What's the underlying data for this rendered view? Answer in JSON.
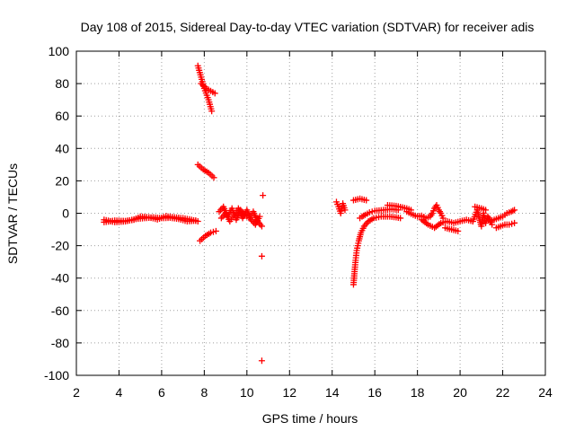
{
  "chart_data": {
    "type": "scatter",
    "title": "Day 108 of 2015, Sidereal Day-to-day VTEC variation (SDTVAR) for receiver adis",
    "xlabel": "GPS time / hours",
    "ylabel": "SDTVAR / TECUs",
    "xlim": [
      2,
      24
    ],
    "ylim": [
      -100,
      100
    ],
    "x_ticks": [
      2,
      4,
      6,
      8,
      10,
      12,
      14,
      16,
      18,
      20,
      22,
      24
    ],
    "y_ticks": [
      -100,
      -80,
      -60,
      -40,
      -20,
      0,
      20,
      40,
      60,
      80,
      100
    ],
    "grid": true,
    "marker": "+",
    "color": "#ff0000",
    "series": [
      {
        "name": "SDTVAR",
        "segments": [
          [
            [
              3.3,
              -5.5
            ],
            [
              3.8,
              -4.5
            ],
            [
              4.3,
              -4.8
            ],
            [
              4.7,
              -4
            ],
            [
              5.0,
              -2
            ],
            [
              5.4,
              -2.5
            ],
            [
              5.8,
              -3.8
            ],
            [
              6.2,
              -1.8
            ],
            [
              6.6,
              -2.5
            ],
            [
              7.0,
              -3
            ],
            [
              7.4,
              -4
            ],
            [
              7.7,
              -5
            ]
          ],
          [
            [
              3.3,
              -4
            ],
            [
              3.8,
              -5.5
            ],
            [
              4.3,
              -5
            ],
            [
              4.8,
              -3.5
            ],
            [
              5.2,
              -3
            ],
            [
              5.6,
              -2.5
            ],
            [
              6.0,
              -3
            ],
            [
              6.4,
              -2.8
            ],
            [
              6.8,
              -3.5
            ],
            [
              7.2,
              -5
            ],
            [
              7.6,
              -4.5
            ]
          ],
          [
            [
              7.7,
              91
            ],
            [
              7.85,
              84
            ],
            [
              8.0,
              77
            ],
            [
              8.2,
              70
            ],
            [
              8.35,
              63
            ]
          ],
          [
            [
              7.85,
              80
            ],
            [
              8.1,
              77
            ],
            [
              8.5,
              74
            ]
          ],
          [
            [
              7.7,
              30
            ],
            [
              7.95,
              27
            ],
            [
              8.2,
              25
            ],
            [
              8.45,
              22
            ]
          ],
          [
            [
              7.8,
              -17
            ],
            [
              8.05,
              -14
            ],
            [
              8.3,
              -12
            ],
            [
              8.55,
              -11
            ]
          ],
          [
            [
              8.7,
              1
            ],
            [
              8.9,
              4
            ],
            [
              9.1,
              -2
            ],
            [
              9.3,
              3
            ],
            [
              9.5,
              -4
            ],
            [
              9.7,
              2
            ],
            [
              9.9,
              -1
            ],
            [
              10.1,
              -3
            ],
            [
              10.3,
              1
            ],
            [
              10.5,
              -5
            ],
            [
              10.7,
              -8
            ]
          ],
          [
            [
              8.8,
              -3
            ],
            [
              9.0,
              0
            ],
            [
              9.2,
              -5
            ],
            [
              9.4,
              -1
            ],
            [
              9.6,
              3
            ],
            [
              9.8,
              -3
            ],
            [
              10.0,
              2
            ],
            [
              10.2,
              -4
            ],
            [
              10.4,
              -7
            ],
            [
              10.6,
              -2
            ]
          ],
          [
            [
              10.75,
              11
            ]
          ],
          [
            [
              10.7,
              -26.5
            ]
          ],
          [
            [
              10.7,
              -91
            ]
          ],
          [
            [
              14.2,
              7
            ],
            [
              14.3,
              4
            ],
            [
              14.4,
              0
            ],
            [
              14.5,
              6
            ],
            [
              14.6,
              2
            ]
          ],
          [
            [
              15.0,
              8
            ],
            [
              15.3,
              9
            ],
            [
              15.6,
              8
            ]
          ],
          [
            [
              15.0,
              -44
            ],
            [
              15.05,
              -36
            ],
            [
              15.1,
              -29
            ],
            [
              15.15,
              -23
            ],
            [
              15.25,
              -17
            ],
            [
              15.35,
              -12
            ],
            [
              15.5,
              -8
            ],
            [
              15.7,
              -5
            ],
            [
              15.95,
              -3
            ],
            [
              16.3,
              -2
            ],
            [
              16.7,
              -2
            ],
            [
              17.0,
              -2.5
            ],
            [
              17.2,
              -3
            ]
          ],
          [
            [
              15.3,
              -3
            ],
            [
              15.4,
              -2
            ],
            [
              15.55,
              -1
            ],
            [
              15.75,
              0.5
            ],
            [
              16.0,
              1.5
            ],
            [
              16.4,
              2
            ],
            [
              16.8,
              2.5
            ],
            [
              17.1,
              2
            ]
          ],
          [
            [
              16.6,
              5
            ],
            [
              17.0,
              4.5
            ],
            [
              17.5,
              3
            ],
            [
              17.7,
              2
            ]
          ],
          [
            [
              17.5,
              1
            ],
            [
              17.8,
              -1
            ],
            [
              18.0,
              -2
            ],
            [
              18.2,
              -1.5
            ],
            [
              18.4,
              -3
            ],
            [
              18.6,
              -2
            ],
            [
              18.7,
              0
            ],
            [
              18.8,
              3
            ],
            [
              18.9,
              5
            ],
            [
              19.0,
              2
            ],
            [
              19.1,
              0
            ],
            [
              19.2,
              -3
            ]
          ],
          [
            [
              18.2,
              -4
            ],
            [
              18.5,
              -7
            ],
            [
              18.8,
              -9
            ],
            [
              19.1,
              -6
            ],
            [
              19.4,
              -5
            ],
            [
              19.7,
              -6
            ],
            [
              20.0,
              -5
            ],
            [
              20.3,
              -4
            ],
            [
              20.6,
              -5
            ]
          ],
          [
            [
              19.3,
              -9
            ],
            [
              19.6,
              -10
            ],
            [
              19.9,
              -11
            ]
          ],
          [
            [
              20.6,
              -5
            ],
            [
              20.8,
              2
            ],
            [
              20.9,
              -3
            ],
            [
              21.0,
              -8
            ],
            [
              21.1,
              0
            ],
            [
              21.2,
              -6
            ],
            [
              21.3,
              -2
            ],
            [
              21.4,
              -4
            ],
            [
              21.5,
              -7
            ]
          ],
          [
            [
              21.4,
              -5
            ],
            [
              21.6,
              -4
            ],
            [
              21.8,
              -3
            ],
            [
              22.0,
              -2
            ],
            [
              22.2,
              0
            ],
            [
              22.4,
              1
            ],
            [
              22.55,
              2
            ]
          ],
          [
            [
              21.7,
              -9
            ],
            [
              21.9,
              -8
            ],
            [
              22.1,
              -7
            ],
            [
              22.3,
              -7
            ],
            [
              22.55,
              -6
            ]
          ],
          [
            [
              20.7,
              4
            ],
            [
              21.0,
              3
            ],
            [
              21.2,
              2
            ]
          ]
        ]
      }
    ]
  }
}
